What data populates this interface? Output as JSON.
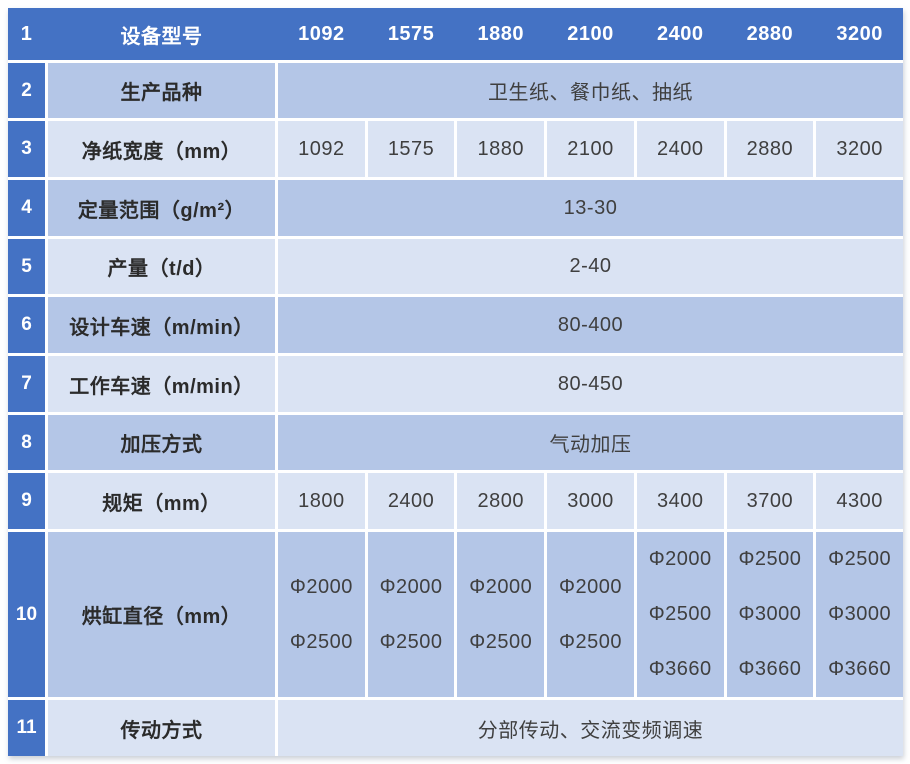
{
  "table": {
    "header": {
      "no": "1",
      "label": "设备型号",
      "cols": [
        "1092",
        "1575",
        "1880",
        "2100",
        "2400",
        "2880",
        "3200"
      ]
    },
    "rows": [
      {
        "no": "2",
        "label": "生产品种",
        "merged": "卫生纸、餐巾纸、抽纸"
      },
      {
        "no": "3",
        "label": "净纸宽度（mm）",
        "cells": [
          "1092",
          "1575",
          "1880",
          "2100",
          "2400",
          "2880",
          "3200"
        ]
      },
      {
        "no": "4",
        "label": "定量范围（g/m²）",
        "merged": "13-30"
      },
      {
        "no": "5",
        "label": "产量（t/d）",
        "merged": "2-40"
      },
      {
        "no": "6",
        "label": "设计车速（m/min）",
        "merged": "80-400"
      },
      {
        "no": "7",
        "label": "工作车速（m/min）",
        "merged": "80-450"
      },
      {
        "no": "8",
        "label": "加压方式",
        "merged": "气动加压"
      },
      {
        "no": "9",
        "label": "规矩（mm）",
        "cells": [
          "1800",
          "2400",
          "2800",
          "3000",
          "3400",
          "3700",
          "4300"
        ]
      },
      {
        "no": "10",
        "label": "烘缸直径（mm）",
        "multiCells": [
          [
            "Φ2000",
            "Φ2500"
          ],
          [
            "Φ2000",
            "Φ2500"
          ],
          [
            "Φ2000",
            "Φ2500"
          ],
          [
            "Φ2000",
            "Φ2500"
          ],
          [
            "Φ2000",
            "Φ2500",
            "Φ3660"
          ],
          [
            "Φ2500",
            "Φ3000",
            "Φ3660"
          ],
          [
            "Φ2500",
            "Φ3000",
            "Φ3660"
          ]
        ]
      },
      {
        "no": "11",
        "label": "传动方式",
        "merged": "分部传动、交流变频调速"
      }
    ],
    "colors": {
      "header_blue": "#4472C4",
      "header_text": "#FFFFFF",
      "band_dark": "#B4C6E7",
      "band_light": "#DAE3F3",
      "label_text": "#2B2B2B",
      "value_text": "#3F3F3F",
      "grid_line": "#FFFFFF"
    }
  }
}
